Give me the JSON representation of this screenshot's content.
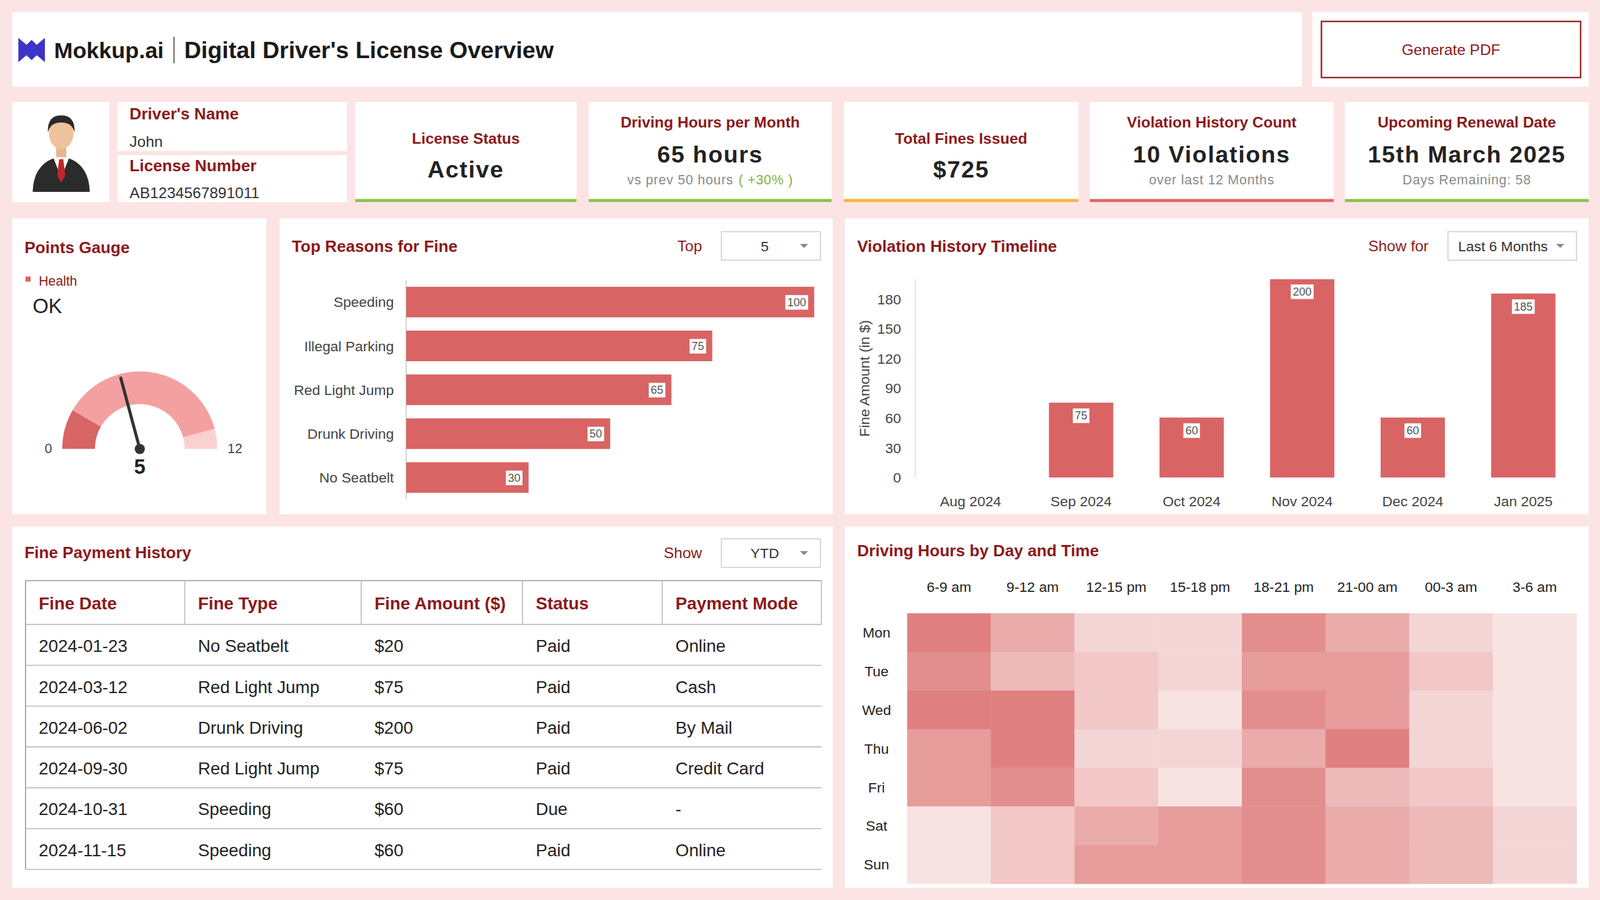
{
  "header": {
    "brand": "Mokkup.ai",
    "title": "Digital Driver's License Overview",
    "button": "Generate PDF"
  },
  "driver": {
    "name_label": "Driver's Name",
    "name": "John",
    "license_label": "License Number",
    "license_number": "AB1234567891011"
  },
  "kpis": [
    {
      "title": "License Status",
      "value": "Active"
    },
    {
      "title": "Driving Hours per Month",
      "value": "65 hours",
      "note": "vs prev 50 hours",
      "change": "( +30% )"
    },
    {
      "title": "Total Fines Issued",
      "value": "$725"
    },
    {
      "title": "Violation History Count",
      "value": "10 Violations",
      "note": "over last 12 Months"
    },
    {
      "title": "Upcoming Renewal Date",
      "value": "15th March 2025",
      "note": "Days Remaining: 58"
    }
  ],
  "chart_data": [
    {
      "type": "gauge",
      "title": "Points Gauge",
      "series": [
        {
          "name": "Health",
          "color": "#d96464",
          "values": [
            5
          ]
        }
      ],
      "status": "OK",
      "ylim": [
        0,
        12
      ],
      "yticks": [
        0,
        12
      ],
      "data_labels": true,
      "bands": [
        {
          "from": 0,
          "to": 2,
          "color": "#d96464"
        },
        {
          "from": 2,
          "to": 11,
          "color": "#f4a0a0"
        },
        {
          "from": 11,
          "to": 12,
          "color": "#fbd0d0"
        }
      ]
    },
    {
      "type": "bar",
      "title": "Top Reasons for Fine",
      "orientation": "horizontal",
      "filter": {
        "label": "Top",
        "value": "5"
      },
      "categories": [
        "Speeding",
        "Illegal Parking",
        "Red Light Jump",
        "Drunk Driving",
        "No Seatbelt"
      ],
      "values": [
        100,
        75,
        65,
        50,
        30
      ],
      "color": "#d96464",
      "xlim": [
        0,
        100
      ],
      "tick_labels": false,
      "data_labels": true,
      "grid": false
    },
    {
      "type": "bar",
      "title": "Violation History Timeline",
      "filter": {
        "label": "Show for",
        "value": "Last 6 Months"
      },
      "categories": [
        "Aug 2024",
        "Sep 2024",
        "Oct 2024",
        "Nov 2024",
        "Dec 2024",
        "Jan 2025"
      ],
      "values": [
        0,
        75,
        60,
        200,
        60,
        185
      ],
      "value_labels": [
        null,
        "75",
        "60",
        "200",
        "60",
        "185"
      ],
      "color": "#d96464",
      "ylabel": "Fine Amount (in $)",
      "ylim": [
        0,
        200
      ],
      "yticks": [
        0,
        30,
        60,
        90,
        120,
        150,
        180
      ],
      "data_labels": true,
      "grid": false
    },
    {
      "type": "heatmap",
      "title": "Driving Hours by Day and Time",
      "categories": [
        "6-9 am",
        "9-12 am",
        "12-15 pm",
        "15-18 pm",
        "18-21 pm",
        "21-00 am",
        "00-3 am",
        "3-6 am"
      ],
      "rows": [
        "Mon",
        "Tue",
        "Wed",
        "Thu",
        "Fri",
        "Sat",
        "Sun"
      ],
      "values": [
        [
          8,
          5,
          2,
          2,
          7,
          5,
          2,
          1
        ],
        [
          7,
          4,
          3,
          2,
          6,
          6,
          3,
          1
        ],
        [
          8,
          8,
          3,
          1,
          7,
          6,
          2,
          1
        ],
        [
          6,
          8,
          2,
          2,
          5,
          8,
          2,
          1
        ],
        [
          6,
          7,
          3,
          1,
          7,
          4,
          3,
          1
        ],
        [
          1,
          3,
          5,
          6,
          7,
          5,
          4,
          2
        ],
        [
          1,
          3,
          6,
          6,
          7,
          5,
          4,
          2
        ]
      ],
      "zlim": [
        0,
        10
      ],
      "color": "#d96464"
    }
  ],
  "table": {
    "title": "Fine Payment History",
    "filter": {
      "label": "Show",
      "value": "YTD"
    },
    "columns": [
      "Fine Date",
      "Fine Type",
      "Fine Amount ($)",
      "Status",
      "Payment Mode"
    ],
    "rows": [
      [
        "2024-01-23",
        "No Seatbelt",
        "$20",
        "Paid",
        "Online"
      ],
      [
        "2024-03-12",
        "Red Light Jump",
        "$75",
        "Paid",
        "Cash"
      ],
      [
        "2024-06-02",
        "Drunk Driving",
        "$200",
        "Paid",
        "By Mail"
      ],
      [
        "2024-09-30",
        "Red Light Jump",
        "$75",
        "Paid",
        "Credit Card"
      ],
      [
        "2024-10-31",
        "Speeding",
        "$60",
        "Due",
        "-"
      ],
      [
        "2024-11-15",
        "Speeding",
        "$60",
        "Paid",
        "Online"
      ]
    ]
  }
}
